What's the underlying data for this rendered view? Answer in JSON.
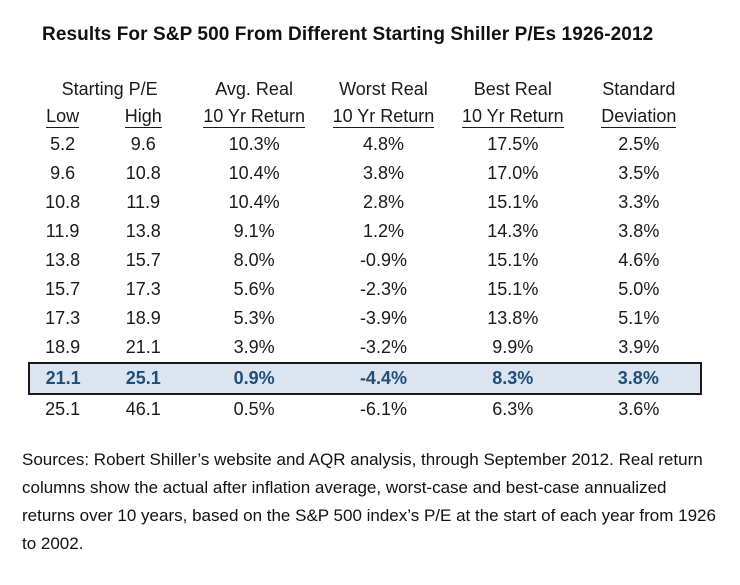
{
  "title": "Results For S&P 500 From Different Starting Shiller P/Es 1926-2012",
  "table": {
    "group_headers": [
      {
        "label": "Starting P/E",
        "span": 2
      },
      {
        "label": "Avg. Real",
        "span": 1
      },
      {
        "label": "Worst Real",
        "span": 1
      },
      {
        "label": "Best Real",
        "span": 1
      },
      {
        "label": "Standard",
        "span": 1
      }
    ],
    "sub_headers": [
      "Low",
      "High",
      "10 Yr Return",
      "10 Yr Return",
      "10 Yr Return",
      "Deviation"
    ],
    "rows": [
      {
        "cells": [
          "5.2",
          "9.6",
          "10.3%",
          "4.8%",
          "17.5%",
          "2.5%"
        ],
        "highlighted": false
      },
      {
        "cells": [
          "9.6",
          "10.8",
          "10.4%",
          "3.8%",
          "17.0%",
          "3.5%"
        ],
        "highlighted": false
      },
      {
        "cells": [
          "10.8",
          "11.9",
          "10.4%",
          "2.8%",
          "15.1%",
          "3.3%"
        ],
        "highlighted": false
      },
      {
        "cells": [
          "11.9",
          "13.8",
          "9.1%",
          "1.2%",
          "14.3%",
          "3.8%"
        ],
        "highlighted": false
      },
      {
        "cells": [
          "13.8",
          "15.7",
          "8.0%",
          "-0.9%",
          "15.1%",
          "4.6%"
        ],
        "highlighted": false
      },
      {
        "cells": [
          "15.7",
          "17.3",
          "5.6%",
          "-2.3%",
          "15.1%",
          "5.0%"
        ],
        "highlighted": false
      },
      {
        "cells": [
          "17.3",
          "18.9",
          "5.3%",
          "-3.9%",
          "13.8%",
          "5.1%"
        ],
        "highlighted": false
      },
      {
        "cells": [
          "18.9",
          "21.1",
          "3.9%",
          "-3.2%",
          "9.9%",
          "3.9%"
        ],
        "highlighted": false
      },
      {
        "cells": [
          "21.1",
          "25.1",
          "0.9%",
          "-4.4%",
          "8.3%",
          "3.8%"
        ],
        "highlighted": true
      },
      {
        "cells": [
          "25.1",
          "46.1",
          "0.5%",
          "-6.1%",
          "6.3%",
          "3.6%"
        ],
        "highlighted": false
      }
    ]
  },
  "source_note": "Sources: Robert Shiller’s website and AQR analysis, through September 2012. Real return columns show the actual after inflation average, worst-case and best-case annualized returns over 10 years, based on the S&P 500 index’s P/E at the start of each year from 1926 to 2002.",
  "colors": {
    "highlight_bg": "#dce4f0",
    "highlight_text": "#1f4e79",
    "highlight_border": "#1a1a1a"
  },
  "chart_data": {
    "type": "table",
    "title": "Results For S&P 500 From Different Starting Shiller P/Es 1926-2012",
    "columns": [
      "Starting P/E Low",
      "Starting P/E High",
      "Avg. Real 10 Yr Return (%)",
      "Worst Real 10 Yr Return (%)",
      "Best Real 10 Yr Return (%)",
      "Standard Deviation (%)"
    ],
    "rows": [
      [
        5.2,
        9.6,
        10.3,
        4.8,
        17.5,
        2.5
      ],
      [
        9.6,
        10.8,
        10.4,
        3.8,
        17.0,
        3.5
      ],
      [
        10.8,
        11.9,
        10.4,
        2.8,
        15.1,
        3.3
      ],
      [
        11.9,
        13.8,
        9.1,
        1.2,
        14.3,
        3.8
      ],
      [
        13.8,
        15.7,
        8.0,
        -0.9,
        15.1,
        4.6
      ],
      [
        15.7,
        17.3,
        5.6,
        -2.3,
        15.1,
        5.0
      ],
      [
        17.3,
        18.9,
        5.3,
        -3.9,
        13.8,
        5.1
      ],
      [
        18.9,
        21.1,
        3.9,
        -3.2,
        9.9,
        3.9
      ],
      [
        21.1,
        25.1,
        0.9,
        -4.4,
        8.3,
        3.8
      ],
      [
        25.1,
        46.1,
        0.5,
        -6.1,
        6.3,
        3.6
      ]
    ],
    "highlighted_row_index": 8
  }
}
